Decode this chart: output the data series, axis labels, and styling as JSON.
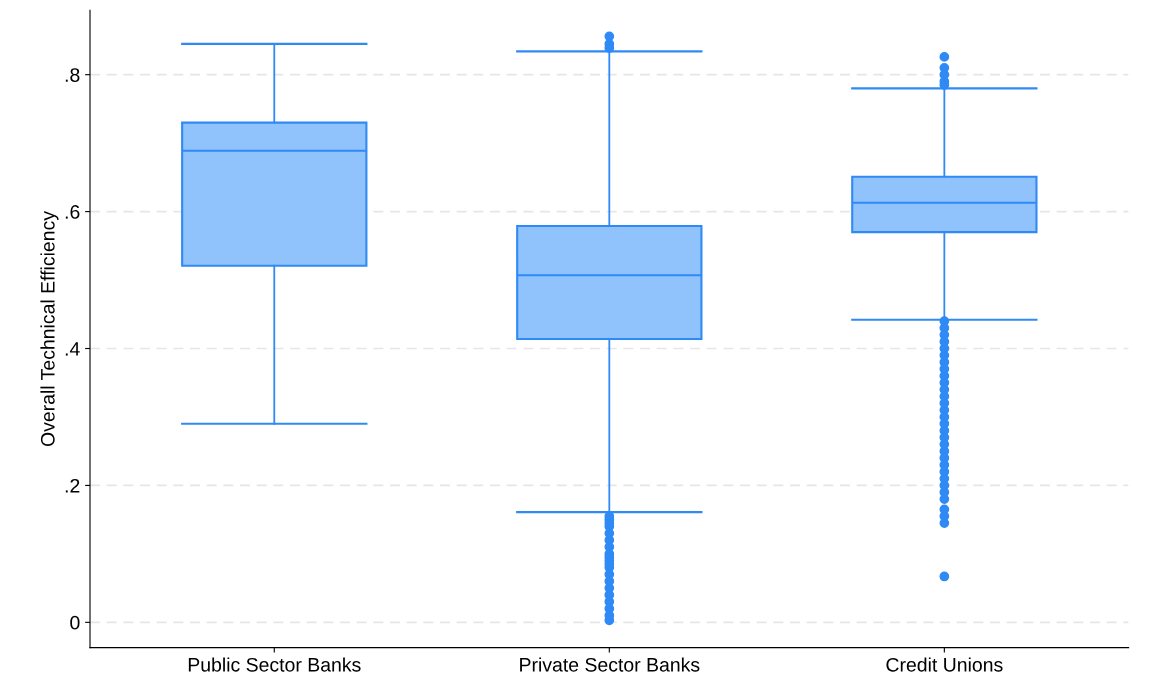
{
  "chart_data": {
    "type": "box",
    "ylabel": "Overall Technical Efficiency",
    "categories": [
      "Public Sector Banks",
      "Private Sector Banks",
      "Credit Unions"
    ],
    "color": "#90c2fc",
    "series": [
      {
        "color": "#2f8af5",
        "boxes": [
          {
            "low": 0.29,
            "q1": 0.521,
            "median": 0.689,
            "q3": 0.73,
            "high": 0.845
          },
          {
            "low": 0.161,
            "q1": 0.414,
            "median": 0.507,
            "q3": 0.579,
            "high": 0.834,
            "outliers": [
              0.856,
              0.845,
              0.839,
              0.155,
              0.15,
              0.145,
              0.14,
              0.13,
              0.12,
              0.11,
              0.1,
              0.095,
              0.09,
              0.085,
              0.08,
              0.07,
              0.06,
              0.05,
              0.04,
              0.03,
              0.02,
              0.01,
              0.003
            ]
          },
          {
            "low": 0.442,
            "q1": 0.57,
            "median": 0.613,
            "q3": 0.651,
            "high": 0.78,
            "outliers": [
              0.826,
              0.81,
              0.8,
              0.79,
              0.785,
              0.44,
              0.43,
              0.42,
              0.41,
              0.4,
              0.39,
              0.38,
              0.37,
              0.36,
              0.35,
              0.34,
              0.33,
              0.32,
              0.31,
              0.3,
              0.29,
              0.28,
              0.27,
              0.26,
              0.25,
              0.24,
              0.23,
              0.22,
              0.21,
              0.2,
              0.19,
              0.18,
              0.165,
              0.155,
              0.145,
              0.067
            ]
          }
        ]
      }
    ],
    "ylim": [
      -0.037,
      0.894
    ],
    "yticks": [
      {
        "value": 0,
        "label": "0"
      },
      {
        "value": 0.2,
        "label": ".2"
      },
      {
        "value": 0.4,
        "label": ".4"
      },
      {
        "value": 0.6,
        "label": ".6"
      },
      {
        "value": 0.8,
        "label": ".8"
      }
    ],
    "grid": "y",
    "marker": "circle"
  }
}
